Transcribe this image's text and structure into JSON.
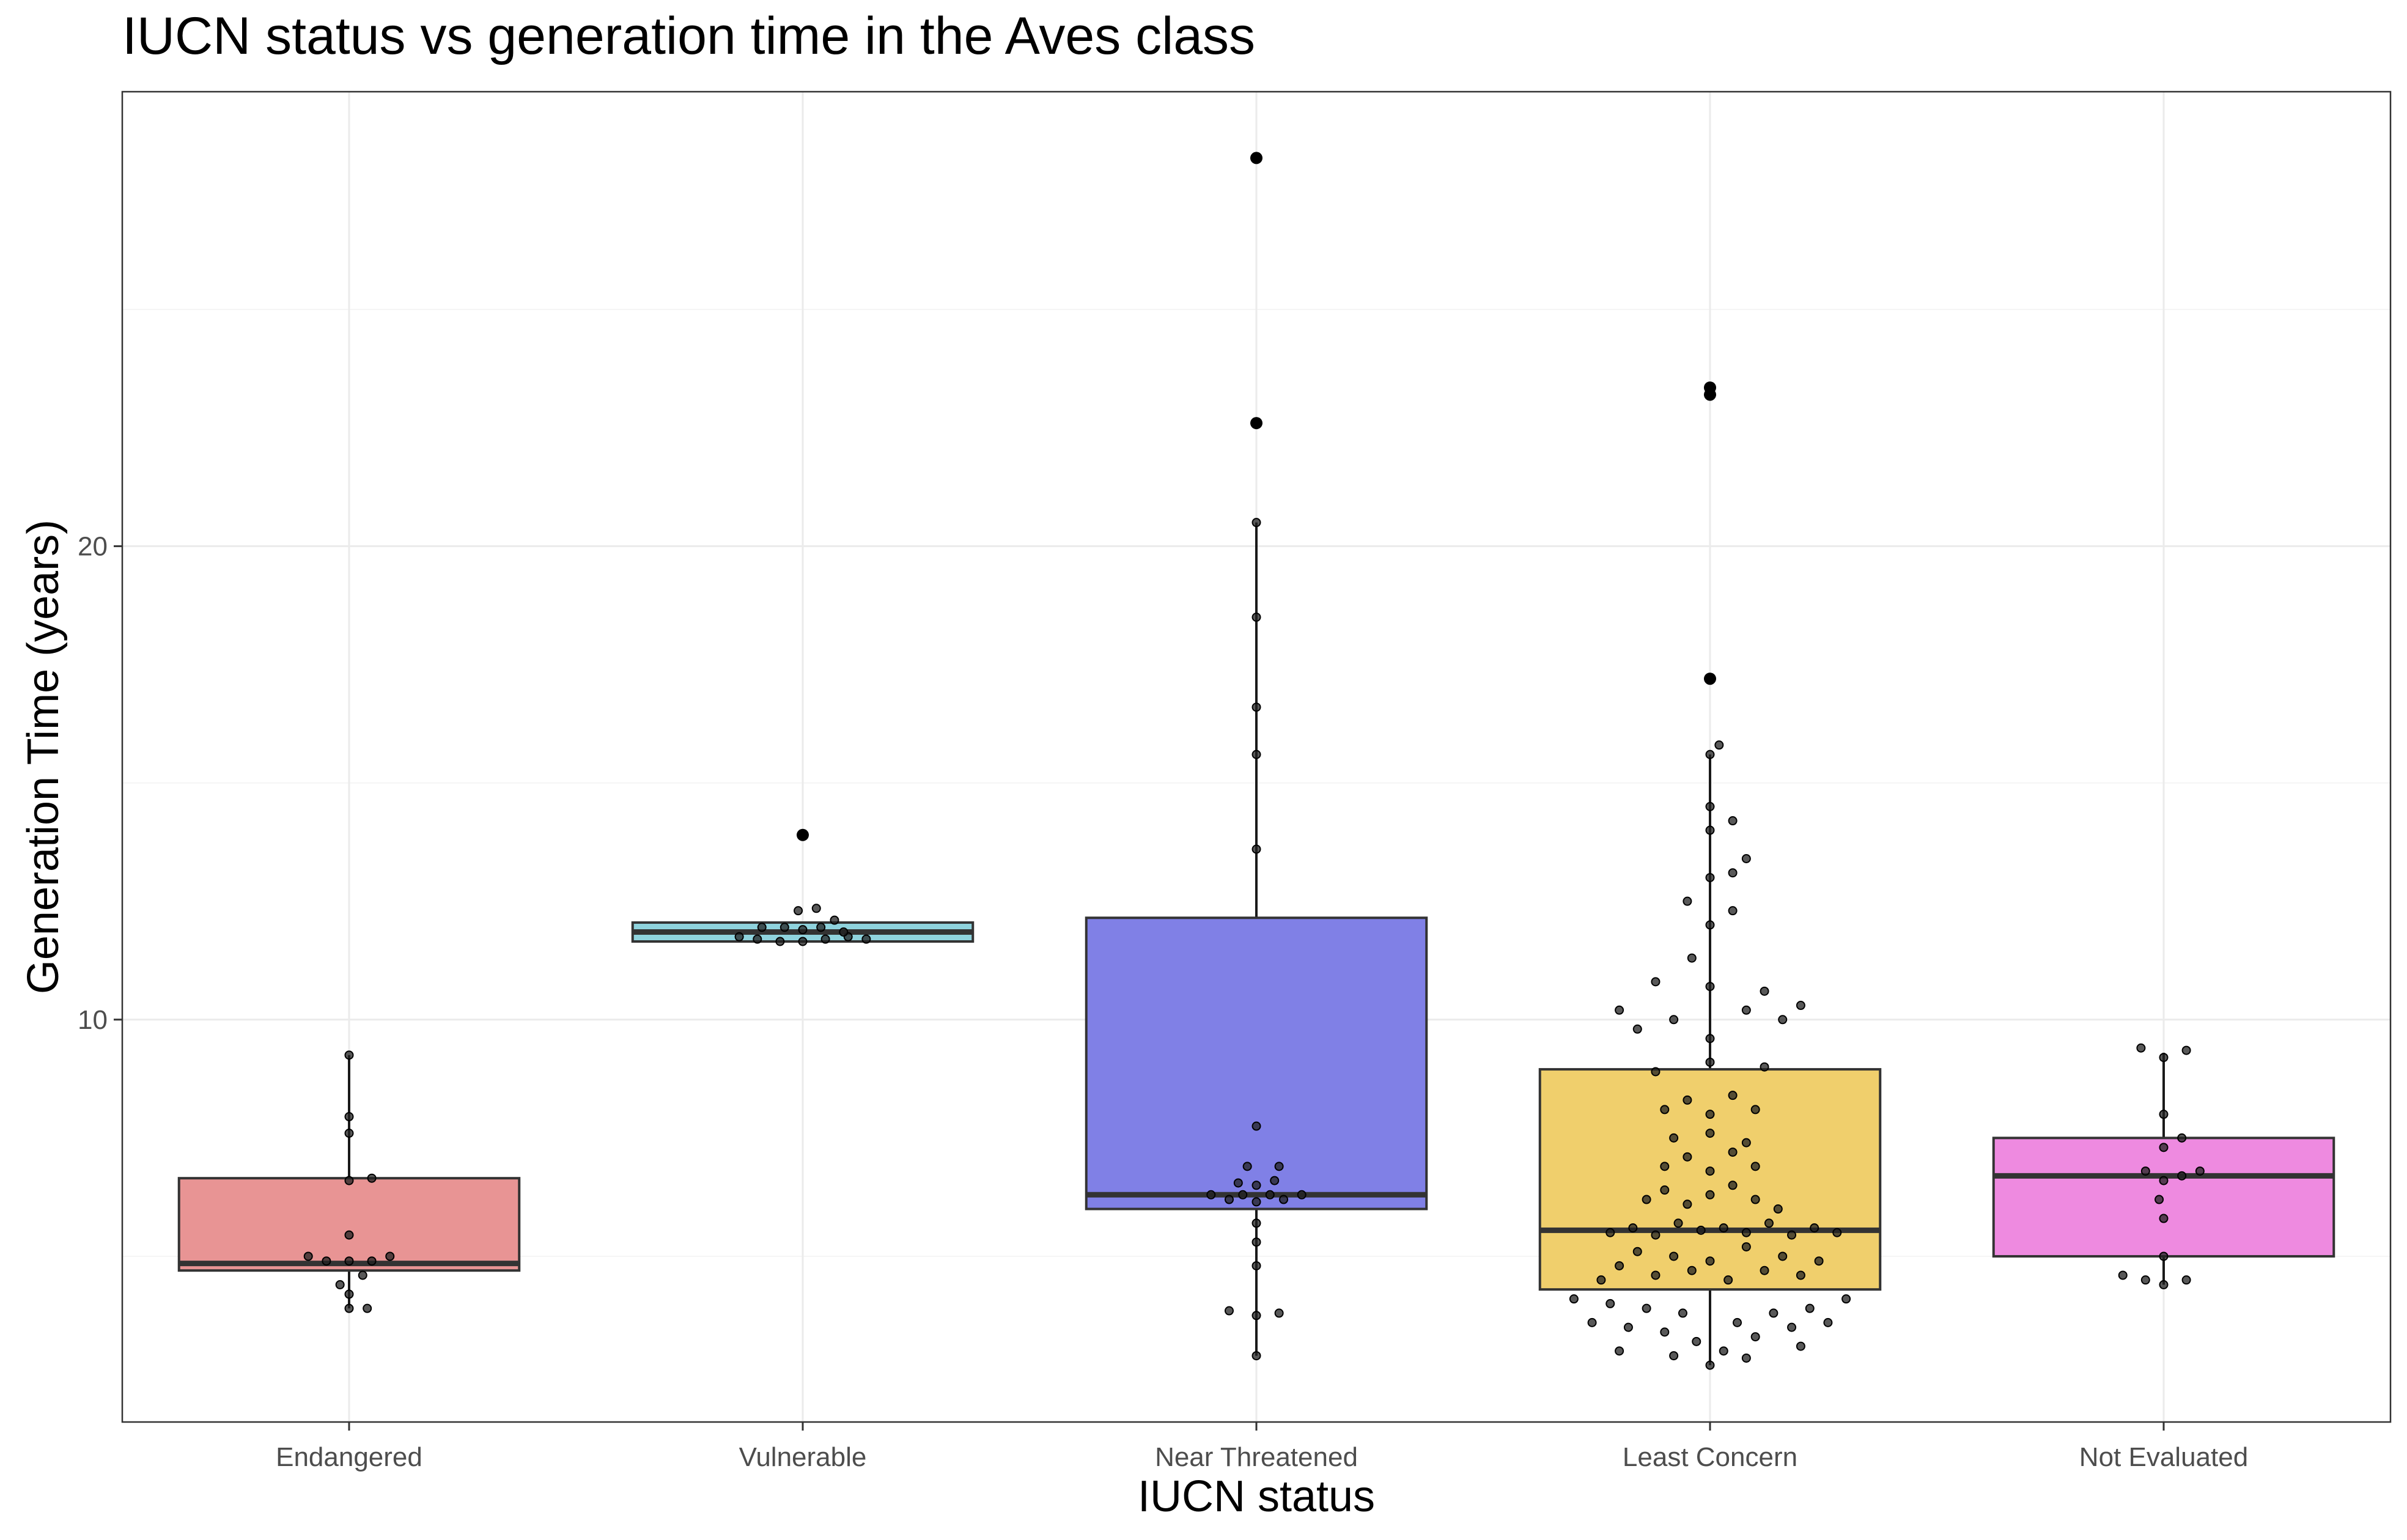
{
  "chart_data": {
    "type": "box",
    "title": "IUCN status vs generation time in the Aves class",
    "xlabel": "IUCN status",
    "ylabel": "Generation Time (years)",
    "ylim": [
      1.5,
      29.6
    ],
    "y_ticks": [
      10,
      20
    ],
    "grid": true,
    "legend": "none",
    "categories": [
      "Endangered",
      "Vulnerable",
      "Near Threatened",
      "Least Concern",
      "Not Evaluated"
    ],
    "boxes": [
      {
        "category": "Endangered",
        "color": "#e89494",
        "q1": 4.7,
        "median": 4.85,
        "q3": 6.65,
        "whisker_low": 3.9,
        "whisker_high": 9.25,
        "outliers": [],
        "points": [
          [
            0.0,
            3.9
          ],
          [
            0.04,
            3.9
          ],
          [
            0.0,
            4.2
          ],
          [
            -0.02,
            4.4
          ],
          [
            0.03,
            4.6
          ],
          [
            0.05,
            4.9
          ],
          [
            -0.05,
            4.9
          ],
          [
            0.0,
            4.9
          ],
          [
            -0.09,
            5.0
          ],
          [
            0.09,
            5.0
          ],
          [
            0.0,
            5.45
          ],
          [
            0.0,
            7.6
          ],
          [
            0.0,
            7.95
          ],
          [
            0.05,
            6.65
          ],
          [
            0.0,
            6.6
          ],
          [
            0.0,
            9.25
          ]
        ]
      },
      {
        "category": "Vulnerable",
        "color": "#8fd3dd",
        "q1": 11.65,
        "median": 11.85,
        "q3": 12.05,
        "whisker_low": 11.65,
        "whisker_high": 12.05,
        "outliers": [
          13.9
        ],
        "points": [
          [
            -0.14,
            11.75
          ],
          [
            -0.1,
            11.7
          ],
          [
            -0.05,
            11.65
          ],
          [
            0.0,
            11.65
          ],
          [
            0.05,
            11.7
          ],
          [
            0.1,
            11.75
          ],
          [
            0.14,
            11.7
          ],
          [
            -0.09,
            11.95
          ],
          [
            -0.04,
            11.95
          ],
          [
            0.0,
            11.9
          ],
          [
            0.04,
            11.95
          ],
          [
            0.09,
            11.85
          ],
          [
            -0.01,
            12.3
          ],
          [
            0.03,
            12.35
          ],
          [
            0.07,
            12.1
          ]
        ]
      },
      {
        "category": "Near Threatened",
        "color": "#8080e6",
        "q1": 6.0,
        "median": 6.3,
        "q3": 12.15,
        "whisker_low": 2.9,
        "whisker_high": 20.5,
        "outliers": [
          22.6,
          28.2
        ],
        "points": [
          [
            0.0,
            2.9
          ],
          [
            -0.06,
            3.85
          ],
          [
            0.0,
            3.75
          ],
          [
            0.05,
            3.8
          ],
          [
            0.0,
            4.8
          ],
          [
            0.0,
            5.3
          ],
          [
            0.0,
            5.7
          ],
          [
            -0.1,
            6.3
          ],
          [
            -0.06,
            6.2
          ],
          [
            -0.03,
            6.3
          ],
          [
            0.0,
            6.15
          ],
          [
            0.03,
            6.3
          ],
          [
            0.06,
            6.2
          ],
          [
            0.1,
            6.3
          ],
          [
            -0.04,
            6.55
          ],
          [
            0.0,
            6.5
          ],
          [
            0.04,
            6.6
          ],
          [
            -0.02,
            6.9
          ],
          [
            0.05,
            6.9
          ],
          [
            0.0,
            7.75
          ],
          [
            0.0,
            13.6
          ],
          [
            0.0,
            15.6
          ],
          [
            0.0,
            16.6
          ],
          [
            0.0,
            18.5
          ],
          [
            0.0,
            20.5
          ]
        ]
      },
      {
        "category": "Least Concern",
        "color": "#f0cf6c",
        "q1": 4.3,
        "median": 5.55,
        "q3": 8.95,
        "whisker_low": 2.7,
        "whisker_high": 15.6,
        "outliers": [
          17.2,
          23.2,
          23.35
        ],
        "points": [
          [
            -0.3,
            4.1
          ],
          [
            -0.26,
            3.6
          ],
          [
            -0.22,
            4.0
          ],
          [
            -0.18,
            3.5
          ],
          [
            -0.14,
            3.9
          ],
          [
            -0.1,
            3.4
          ],
          [
            -0.06,
            3.8
          ],
          [
            -0.03,
            3.2
          ],
          [
            0.0,
            2.7
          ],
          [
            0.03,
            3.0
          ],
          [
            0.06,
            3.6
          ],
          [
            0.1,
            3.3
          ],
          [
            0.14,
            3.8
          ],
          [
            0.18,
            3.5
          ],
          [
            0.22,
            3.9
          ],
          [
            0.26,
            3.6
          ],
          [
            0.3,
            4.1
          ],
          [
            -0.2,
            3.0
          ],
          [
            0.2,
            3.1
          ],
          [
            -0.08,
            2.9
          ],
          [
            0.08,
            2.85
          ],
          [
            -0.24,
            4.5
          ],
          [
            -0.2,
            4.8
          ],
          [
            -0.16,
            5.1
          ],
          [
            -0.12,
            4.6
          ],
          [
            -0.08,
            5.0
          ],
          [
            -0.04,
            4.7
          ],
          [
            0.0,
            4.9
          ],
          [
            0.04,
            4.5
          ],
          [
            0.08,
            5.2
          ],
          [
            0.12,
            4.7
          ],
          [
            0.16,
            5.0
          ],
          [
            0.2,
            4.6
          ],
          [
            0.24,
            4.9
          ],
          [
            -0.22,
            5.5
          ],
          [
            -0.17,
            5.6
          ],
          [
            -0.12,
            5.45
          ],
          [
            -0.07,
            5.7
          ],
          [
            -0.02,
            5.55
          ],
          [
            0.03,
            5.6
          ],
          [
            0.08,
            5.5
          ],
          [
            0.13,
            5.7
          ],
          [
            0.18,
            5.45
          ],
          [
            0.23,
            5.6
          ],
          [
            0.28,
            5.5
          ],
          [
            -0.14,
            6.2
          ],
          [
            -0.1,
            6.4
          ],
          [
            -0.05,
            6.1
          ],
          [
            0.0,
            6.3
          ],
          [
            0.05,
            6.5
          ],
          [
            0.1,
            6.2
          ],
          [
            0.15,
            6.0
          ],
          [
            -0.1,
            6.9
          ],
          [
            -0.05,
            7.1
          ],
          [
            0.0,
            6.8
          ],
          [
            0.05,
            7.2
          ],
          [
            0.1,
            6.9
          ],
          [
            -0.08,
            7.5
          ],
          [
            0.0,
            7.6
          ],
          [
            0.08,
            7.4
          ],
          [
            -0.1,
            8.1
          ],
          [
            -0.05,
            8.3
          ],
          [
            0.0,
            8.0
          ],
          [
            0.05,
            8.4
          ],
          [
            0.1,
            8.1
          ],
          [
            -0.12,
            8.9
          ],
          [
            0.0,
            9.1
          ],
          [
            0.12,
            9.0
          ],
          [
            -0.16,
            9.8
          ],
          [
            -0.08,
            10.0
          ],
          [
            0.0,
            9.6
          ],
          [
            0.08,
            10.2
          ],
          [
            0.16,
            10.0
          ],
          [
            -0.2,
            10.2
          ],
          [
            -0.12,
            10.8
          ],
          [
            0.0,
            10.7
          ],
          [
            0.12,
            10.6
          ],
          [
            0.2,
            10.3
          ],
          [
            -0.04,
            11.3
          ],
          [
            0.0,
            12.0
          ],
          [
            0.05,
            12.3
          ],
          [
            -0.05,
            12.5
          ],
          [
            0.0,
            13.0
          ],
          [
            0.05,
            13.1
          ],
          [
            0.0,
            14.0
          ],
          [
            0.05,
            14.2
          ],
          [
            0.0,
            14.5
          ],
          [
            0.08,
            13.4
          ],
          [
            0.0,
            15.6
          ],
          [
            0.02,
            15.8
          ]
        ]
      },
      {
        "category": "Not Evaluated",
        "color": "#ee8ae0",
        "q1": 5.0,
        "median": 6.7,
        "q3": 7.5,
        "whisker_low": 4.4,
        "whisker_high": 9.3,
        "outliers": [],
        "points": [
          [
            -0.09,
            4.6
          ],
          [
            -0.04,
            4.5
          ],
          [
            0.0,
            4.4
          ],
          [
            0.05,
            4.5
          ],
          [
            0.0,
            5.0
          ],
          [
            0.0,
            5.8
          ],
          [
            -0.01,
            6.2
          ],
          [
            0.0,
            6.6
          ],
          [
            0.04,
            6.7
          ],
          [
            -0.04,
            6.8
          ],
          [
            0.08,
            6.8
          ],
          [
            0.0,
            7.3
          ],
          [
            0.04,
            7.5
          ],
          [
            0.0,
            8.0
          ],
          [
            0.0,
            9.2
          ],
          [
            -0.05,
            9.4
          ],
          [
            0.05,
            9.35
          ]
        ]
      }
    ]
  }
}
